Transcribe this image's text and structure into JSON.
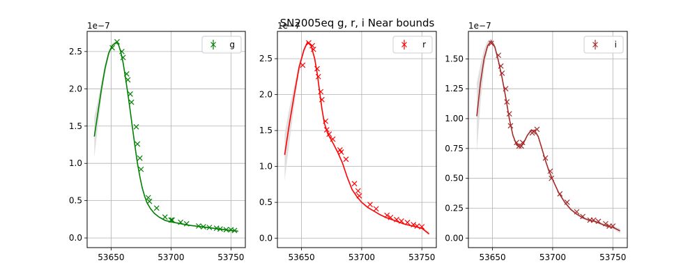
{
  "title": "SN2005eq  g, r, i Near bounds",
  "chart_data": [
    {
      "type": "line",
      "legend": "g",
      "legend_placement": "top-right",
      "color": "#008000",
      "grid": true,
      "xlim": [
        53630,
        53762
      ],
      "ylim": [
        -0.13,
        2.77
      ],
      "xticks": [
        53650,
        53700,
        53750
      ],
      "yticks": [
        0.0,
        0.5,
        1.0,
        1.5,
        2.0,
        2.5
      ],
      "ytick_labels": [
        "0.0",
        "0.5",
        "1.0",
        "1.5",
        "2.0",
        "2.5"
      ],
      "y_multiplier": "1e−7",
      "model_x": [
        53636,
        53639,
        53642,
        53645,
        53648,
        53651,
        53654,
        53656,
        53658,
        53660,
        53662,
        53664,
        53666,
        53668,
        53670,
        53672,
        53674,
        53676,
        53678,
        53680,
        53683,
        53686,
        53690,
        53695,
        53700,
        53705,
        53710,
        53715,
        53720,
        53725,
        53730,
        53735,
        53740,
        53745,
        53750,
        53756
      ],
      "model_y": [
        1.36,
        1.68,
        2.0,
        2.28,
        2.48,
        2.58,
        2.62,
        2.6,
        2.5,
        2.35,
        2.15,
        1.93,
        1.7,
        1.46,
        1.22,
        1.0,
        0.82,
        0.67,
        0.56,
        0.47,
        0.39,
        0.33,
        0.28,
        0.235,
        0.215,
        0.2,
        0.185,
        0.17,
        0.16,
        0.15,
        0.14,
        0.13,
        0.12,
        0.11,
        0.1,
        0.09
      ],
      "band_lo": [
        1.08,
        1.5,
        1.88,
        2.2,
        2.43,
        2.55,
        2.6,
        2.58,
        2.49,
        2.34,
        2.14,
        1.92,
        1.69,
        1.45,
        1.21,
        0.99,
        0.81,
        0.66,
        0.55,
        0.46,
        0.38,
        0.32,
        0.27,
        0.225,
        0.205,
        0.19,
        0.175,
        0.16,
        0.15,
        0.14,
        0.13,
        0.12,
        0.11,
        0.1,
        0.09,
        0.08
      ],
      "band_hi": [
        1.62,
        1.84,
        2.1,
        2.34,
        2.52,
        2.61,
        2.64,
        2.62,
        2.51,
        2.36,
        2.16,
        1.94,
        1.71,
        1.47,
        1.23,
        1.01,
        0.83,
        0.68,
        0.57,
        0.48,
        0.4,
        0.34,
        0.29,
        0.245,
        0.225,
        0.21,
        0.195,
        0.18,
        0.17,
        0.16,
        0.15,
        0.14,
        0.13,
        0.12,
        0.11,
        0.1
      ],
      "obs_x": [
        53651,
        53655,
        53659,
        53660,
        53663,
        53664,
        53666,
        53667,
        53671,
        53672,
        53674,
        53675,
        53681,
        53682,
        53688,
        53695,
        53700,
        53701,
        53708,
        53713,
        53723,
        53727,
        53732,
        53738,
        53741,
        53746,
        53750,
        53753
      ],
      "obs_y": [
        2.55,
        2.63,
        2.5,
        2.42,
        2.2,
        2.12,
        1.93,
        1.82,
        1.49,
        1.26,
        1.07,
        0.92,
        0.54,
        0.49,
        0.4,
        0.28,
        0.24,
        0.24,
        0.21,
        0.19,
        0.16,
        0.15,
        0.14,
        0.13,
        0.12,
        0.11,
        0.11,
        0.1
      ]
    },
    {
      "type": "line",
      "legend": "r",
      "legend_placement": "top-right",
      "color": "#ff0000",
      "grid": true,
      "xlim": [
        53630,
        53762
      ],
      "ylim": [
        -0.13,
        2.88
      ],
      "xticks": [
        53650,
        53700,
        53750
      ],
      "yticks": [
        0.0,
        0.5,
        1.0,
        1.5,
        2.0,
        2.5
      ],
      "ytick_labels": [
        "0.0",
        "0.5",
        "1.0",
        "1.5",
        "2.0",
        "2.5"
      ],
      "y_multiplier": "1e−7",
      "model_x": [
        53636,
        53640,
        53644,
        53648,
        53652,
        53655,
        53658,
        53661,
        53663,
        53665,
        53667,
        53669,
        53672,
        53676,
        53680,
        53684,
        53688,
        53692,
        53696,
        53700,
        53705,
        53710,
        53715,
        53720,
        53725,
        53730,
        53735,
        53740,
        53745,
        53750,
        53756
      ],
      "model_y": [
        1.16,
        1.6,
        2.0,
        2.38,
        2.62,
        2.73,
        2.68,
        2.5,
        2.3,
        2.05,
        1.8,
        1.6,
        1.45,
        1.33,
        1.2,
        1.05,
        0.85,
        0.68,
        0.58,
        0.5,
        0.43,
        0.38,
        0.33,
        0.29,
        0.26,
        0.23,
        0.2,
        0.18,
        0.16,
        0.14,
        0.06
      ],
      "band_lo": [
        0.8,
        1.35,
        1.85,
        2.3,
        2.58,
        2.71,
        2.67,
        2.49,
        2.29,
        2.04,
        1.79,
        1.59,
        1.44,
        1.32,
        1.19,
        1.04,
        0.84,
        0.67,
        0.57,
        0.49,
        0.42,
        0.37,
        0.32,
        0.28,
        0.25,
        0.22,
        0.19,
        0.17,
        0.15,
        0.13,
        0.04
      ],
      "band_hi": [
        1.45,
        1.82,
        2.13,
        2.44,
        2.66,
        2.75,
        2.69,
        2.51,
        2.31,
        2.06,
        1.81,
        1.61,
        1.46,
        1.34,
        1.21,
        1.06,
        0.86,
        0.69,
        0.59,
        0.51,
        0.44,
        0.39,
        0.34,
        0.3,
        0.27,
        0.24,
        0.21,
        0.19,
        0.17,
        0.15,
        0.09
      ],
      "obs_x": [
        53651,
        53656,
        53659,
        53660,
        53663,
        53664,
        53666,
        53667,
        53670,
        53671,
        53673,
        53676,
        53682,
        53683,
        53687,
        53694,
        53697,
        53698,
        53707,
        53712,
        53721,
        53724,
        53729,
        53733,
        53738,
        53743,
        53746,
        53750
      ],
      "obs_y": [
        2.41,
        2.72,
        2.68,
        2.63,
        2.36,
        2.25,
        2.04,
        1.93,
        1.63,
        1.51,
        1.45,
        1.38,
        1.23,
        1.2,
        1.1,
        0.76,
        0.66,
        0.59,
        0.47,
        0.41,
        0.32,
        0.29,
        0.26,
        0.24,
        0.22,
        0.19,
        0.17,
        0.16
      ]
    },
    {
      "type": "line",
      "legend": "i",
      "legend_placement": "top-right",
      "color": "#a52a2a",
      "grid": true,
      "xlim": [
        53630,
        53762
      ],
      "ylim": [
        -0.08,
        1.73
      ],
      "xticks": [
        53650,
        53700,
        53750
      ],
      "yticks": [
        0.0,
        0.25,
        0.5,
        0.75,
        1.0,
        1.25,
        1.5
      ],
      "ytick_labels": [
        "0.00",
        "0.25",
        "0.50",
        "0.75",
        "1.00",
        "1.25",
        "1.50"
      ],
      "y_multiplier": "1e−7",
      "model_x": [
        53637,
        53640,
        53643,
        53646,
        53649,
        53652,
        53655,
        53658,
        53661,
        53664,
        53667,
        53670,
        53673,
        53676,
        53679,
        53682,
        53685,
        53688,
        53691,
        53694,
        53697,
        53700,
        53705,
        53710,
        53715,
        53720,
        53725,
        53730,
        53735,
        53740,
        53745,
        53750,
        53756
      ],
      "model_y": [
        1.02,
        1.3,
        1.5,
        1.61,
        1.65,
        1.6,
        1.48,
        1.34,
        1.18,
        1.0,
        0.86,
        0.78,
        0.76,
        0.8,
        0.86,
        0.9,
        0.9,
        0.85,
        0.75,
        0.65,
        0.56,
        0.49,
        0.38,
        0.3,
        0.24,
        0.2,
        0.17,
        0.15,
        0.14,
        0.12,
        0.1,
        0.09,
        0.06
      ],
      "band_lo": [
        0.72,
        1.12,
        1.42,
        1.58,
        1.63,
        1.58,
        1.47,
        1.33,
        1.17,
        0.99,
        0.85,
        0.77,
        0.75,
        0.79,
        0.85,
        0.89,
        0.89,
        0.84,
        0.74,
        0.64,
        0.55,
        0.48,
        0.37,
        0.29,
        0.23,
        0.19,
        0.16,
        0.14,
        0.13,
        0.11,
        0.09,
        0.08,
        0.04
      ],
      "band_hi": [
        1.3,
        1.45,
        1.58,
        1.65,
        1.67,
        1.62,
        1.49,
        1.35,
        1.19,
        1.01,
        0.87,
        0.79,
        0.77,
        0.81,
        0.87,
        0.91,
        0.91,
        0.86,
        0.76,
        0.66,
        0.57,
        0.5,
        0.39,
        0.31,
        0.25,
        0.21,
        0.18,
        0.16,
        0.15,
        0.13,
        0.11,
        0.1,
        0.08
      ],
      "obs_x": [
        53649,
        53655,
        53657,
        53658,
        53661,
        53662,
        53664,
        53665,
        53670,
        53672,
        53674,
        53675,
        53683,
        53684,
        53687,
        53694,
        53698,
        53699,
        53706,
        53712,
        53720,
        53725,
        53731,
        53734,
        53738,
        53744,
        53747,
        53750
      ],
      "obs_y": [
        1.63,
        1.53,
        1.44,
        1.38,
        1.25,
        1.14,
        1.04,
        0.94,
        0.8,
        0.77,
        0.77,
        0.8,
        0.88,
        0.89,
        0.91,
        0.67,
        0.56,
        0.5,
        0.37,
        0.3,
        0.22,
        0.18,
        0.15,
        0.15,
        0.14,
        0.12,
        0.1,
        0.1
      ]
    }
  ]
}
